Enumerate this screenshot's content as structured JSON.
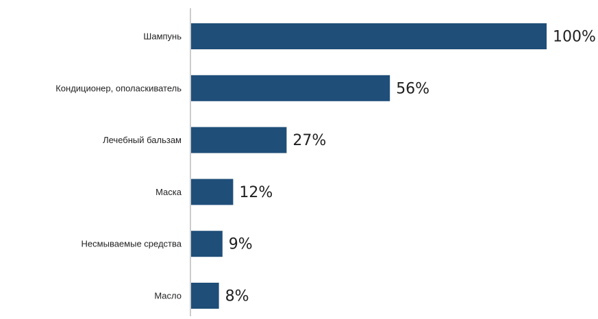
{
  "chart_data": {
    "type": "bar",
    "orientation": "horizontal",
    "categories": [
      "Шампунь",
      "Кондиционер, ополаскиватель",
      "Лечебный бальзам",
      "Маска",
      "Несмываемые средства",
      "Масло"
    ],
    "values": [
      100,
      56,
      27,
      12,
      9,
      8
    ],
    "value_labels": [
      "100%",
      "56%",
      "27%",
      "12%",
      "9%",
      "8%"
    ],
    "unit": "%",
    "title": "",
    "xlabel": "",
    "ylabel": "",
    "xlim": [
      0,
      100
    ],
    "grid": false,
    "legend": "none",
    "colors": {
      "bar": "#1f4e79",
      "axis": "#9a9a9a"
    }
  }
}
